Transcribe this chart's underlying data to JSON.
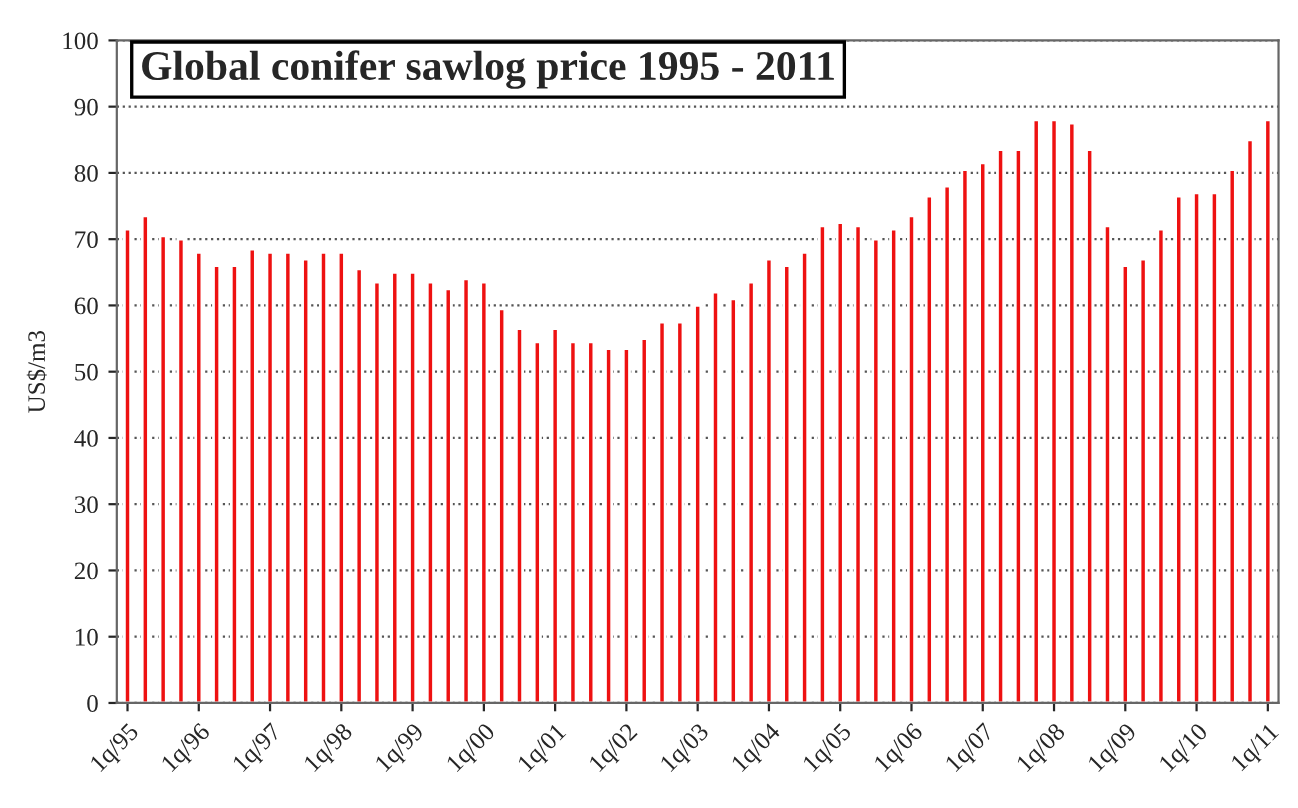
{
  "chart_data": {
    "type": "bar",
    "title": "Global conifer sawlog price 1995 - 2011",
    "ylabel": "US$/m3",
    "categories": [
      "1q/95",
      null,
      null,
      null,
      "1q/96",
      null,
      null,
      null,
      "1q/97",
      null,
      null,
      null,
      "1q/98",
      null,
      null,
      null,
      "1q/99",
      null,
      null,
      null,
      "1q/00",
      null,
      null,
      null,
      "1q/01",
      null,
      null,
      null,
      "1q/02",
      null,
      null,
      null,
      "1q/03",
      null,
      null,
      null,
      "1q/04",
      null,
      null,
      null,
      "1q/05",
      null,
      null,
      null,
      "1q/06",
      null,
      null,
      null,
      "1q/07",
      null,
      null,
      null,
      "1q/08",
      null,
      null,
      null,
      "1q/09",
      null,
      null,
      null,
      "1q/10",
      null,
      null,
      null,
      "1q/11"
    ],
    "values": [
      71.5,
      73.5,
      70.5,
      70,
      68,
      66,
      66,
      68.5,
      68,
      68,
      67,
      68,
      68,
      65.5,
      63.5,
      65,
      65,
      63.5,
      62.5,
      64,
      63.5,
      59.5,
      56.5,
      54.5,
      56.5,
      54.5,
      54.5,
      53.5,
      53.5,
      55,
      57.5,
      57.5,
      60,
      62,
      61,
      63.5,
      67,
      66,
      68,
      72,
      72.5,
      72,
      70,
      71.5,
      73.5,
      76.5,
      78,
      80.5,
      81.5,
      83.5,
      83.5,
      88,
      88,
      87.5,
      83.5,
      72,
      66,
      67,
      71.5,
      76.5,
      77,
      77,
      80.5,
      85,
      88
    ],
    "color": "#ee1111",
    "ylim": [
      0,
      100
    ],
    "yticks": [
      0,
      10,
      20,
      30,
      40,
      50,
      60,
      70,
      80,
      90,
      100
    ],
    "grid": "y"
  }
}
